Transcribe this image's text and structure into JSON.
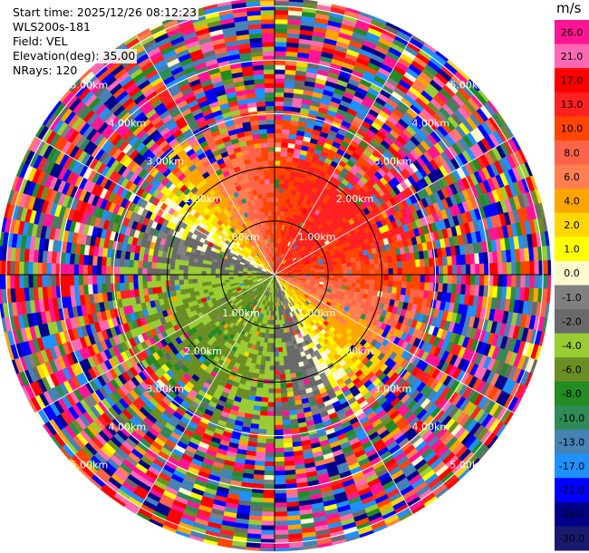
{
  "info": {
    "start_time": "Start time: 2025/12/26 08:12:23",
    "instrument": "WLS200s-181",
    "field": "Field: VEL",
    "elevation": "Elevation(deg): 35.00",
    "nrays": "NRays: 120"
  },
  "colorbar": {
    "unit": "m/s",
    "ticks": [
      "26.0",
      "21.0",
      "17.0",
      "13.0",
      "10.0",
      "8.0",
      "6.0",
      "4.0",
      "2.0",
      "1.0",
      "0.0",
      "-1.0",
      "-2.0",
      "-4.0",
      "-6.0",
      "-8.0",
      "-10.0",
      "-13.0",
      "-17.0",
      "-21.0",
      "-26.0",
      "-30.0"
    ],
    "colors": [
      "#ff1493",
      "#ff69b4",
      "#ff0000",
      "#ff2020",
      "#ff4500",
      "#ff6347",
      "#ff7f50",
      "#ffa500",
      "#ffd700",
      "#ffff00",
      "#fffacd",
      "#808080",
      "#696969",
      "#9acd32",
      "#6b8e23",
      "#228b22",
      "#2e8b57",
      "#4682b4",
      "#1e90ff",
      "#0000ff",
      "#00008b",
      "#191970"
    ]
  },
  "chart_data": {
    "type": "ppi",
    "field": "VEL",
    "units": "m/s",
    "rays": 120,
    "elevation_deg": 35.0,
    "range_rings_km": [
      1.0,
      2.0,
      3.0,
      4.0,
      5.0
    ],
    "ring_label_text": [
      "1.00km",
      "2.00km",
      "3.00km",
      "4.00km",
      "5.00km"
    ],
    "clim": [
      -30.0,
      26.0
    ],
    "approx_velocity_by_sector_inner": {
      "north_east": 12.0,
      "east": 3.0,
      "south_east": 3.0,
      "south_west": -4.0,
      "west": -10.0,
      "north_west": -6.0
    }
  }
}
